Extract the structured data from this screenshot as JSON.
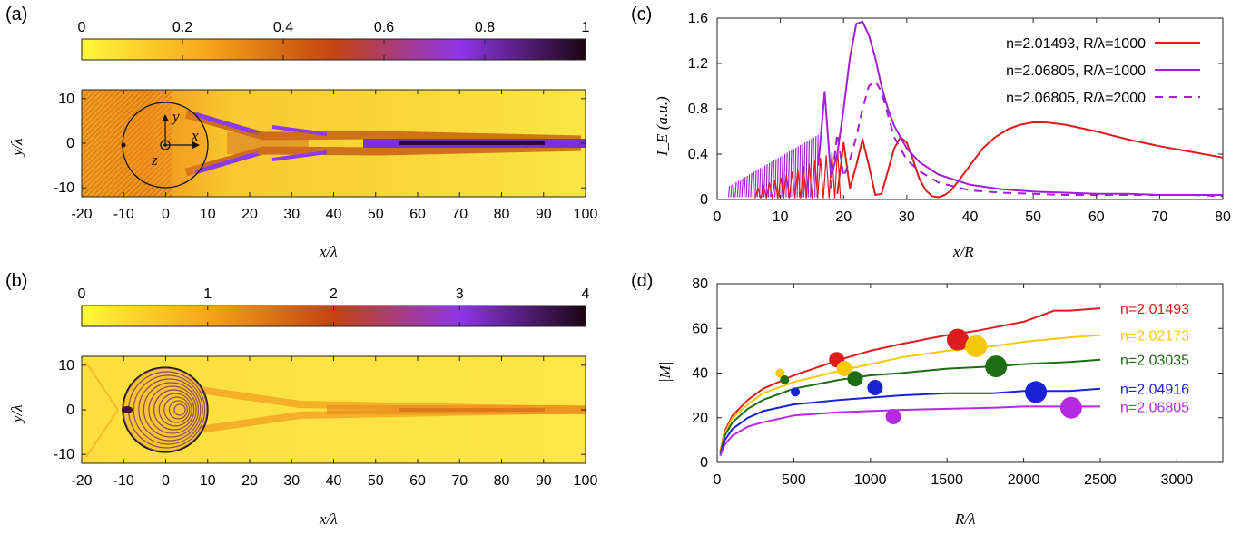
{
  "panel_labels": [
    "(a)",
    "(b)",
    "(c)",
    "(d)"
  ],
  "chart_data": [
    {
      "panel": "(a)",
      "type": "heatmap",
      "colorbar": {
        "ticks": [
          "0",
          "0.2",
          "0.4",
          "0.6",
          "0.8",
          "1"
        ],
        "range": [
          0,
          1
        ],
        "colors": [
          "#fff83a",
          "#f6a51a",
          "#c2430f",
          "#8e35e8",
          "#1a0610"
        ]
      },
      "xlabel": "x/λ",
      "ylabel": "y/λ",
      "xticks": [
        "-20",
        "-10",
        "0",
        "10",
        "20",
        "30",
        "40",
        "50",
        "60",
        "70",
        "80",
        "90",
        "100"
      ],
      "yticks": [
        "10",
        "0",
        "-10"
      ],
      "xlim": [
        -20,
        100
      ],
      "ylim": [
        -12,
        12
      ],
      "annotations": [
        "y",
        "x",
        "z"
      ],
      "sphere": {
        "center": [
          0,
          0
        ],
        "radius": 10
      }
    },
    {
      "panel": "(b)",
      "type": "heatmap",
      "colorbar": {
        "ticks": [
          "0",
          "1",
          "2",
          "3",
          "4"
        ],
        "range": [
          0,
          4
        ],
        "colors": [
          "#fff83a",
          "#f6a51a",
          "#c2430f",
          "#8e35e8",
          "#1a0610"
        ]
      },
      "xlabel": "x/λ",
      "ylabel": "y/λ",
      "xticks": [
        "-20",
        "-10",
        "0",
        "10",
        "20",
        "30",
        "40",
        "50",
        "60",
        "70",
        "80",
        "90",
        "100"
      ],
      "yticks": [
        "10",
        "0",
        "-10"
      ],
      "xlim": [
        -20,
        100
      ],
      "ylim": [
        -12,
        12
      ],
      "sphere": {
        "center": [
          0,
          0
        ],
        "radius": 10
      }
    },
    {
      "panel": "(c)",
      "type": "line",
      "xlabel": "x/R",
      "ylabel": "I_E (a.u.)",
      "xlim": [
        0,
        80
      ],
      "ylim": [
        0,
        1.6
      ],
      "xticks": [
        "0",
        "10",
        "20",
        "30",
        "40",
        "50",
        "60",
        "70",
        "80"
      ],
      "yticks": [
        "0",
        "0.4",
        "0.8",
        "1.2",
        "1.6"
      ],
      "legend": [
        "n=2.01493, R/λ=1000",
        "n=2.06805, R/λ=1000",
        "n=2.06805, R/λ=2000"
      ],
      "series": [
        {
          "name": "n=2.01493, R/λ=1000",
          "color": "#dd1c1c",
          "style": "solid",
          "x": [
            19,
            20,
            21,
            22,
            23,
            24,
            25,
            26,
            27,
            28,
            29,
            30,
            31,
            32,
            33,
            34,
            35,
            36,
            37,
            38,
            40,
            42,
            44,
            46,
            48,
            50,
            52,
            55,
            60,
            65,
            70,
            75,
            80
          ],
          "y": [
            0.05,
            0.5,
            0.1,
            0.3,
            0.53,
            0.3,
            0.04,
            0.05,
            0.25,
            0.45,
            0.55,
            0.5,
            0.35,
            0.18,
            0.08,
            0.03,
            0.02,
            0.04,
            0.08,
            0.15,
            0.3,
            0.45,
            0.55,
            0.62,
            0.66,
            0.68,
            0.68,
            0.66,
            0.6,
            0.53,
            0.47,
            0.42,
            0.37
          ]
        },
        {
          "name": "n=2.06805, R/λ=1000",
          "color": "#a21fd4",
          "style": "solid",
          "x": [
            16,
            17,
            18,
            19,
            20,
            21,
            22,
            23,
            24,
            25,
            26,
            27,
            28,
            30,
            32,
            35,
            40,
            45,
            50,
            55,
            60,
            65,
            70,
            75,
            80
          ],
          "y": [
            0.3,
            0.95,
            0.2,
            0.4,
            0.8,
            1.25,
            1.55,
            1.57,
            1.45,
            1.25,
            1.0,
            0.8,
            0.65,
            0.45,
            0.33,
            0.22,
            0.13,
            0.09,
            0.07,
            0.06,
            0.05,
            0.05,
            0.04,
            0.04,
            0.04
          ]
        },
        {
          "name": "n=2.06805, R/λ=2000",
          "color": "#a21fd4",
          "style": "dashed",
          "x": [
            18,
            19,
            20,
            21,
            22,
            23,
            24,
            25,
            26,
            27,
            28,
            30,
            32,
            35,
            40,
            45,
            50,
            55,
            60,
            65,
            70,
            75,
            80
          ],
          "y": [
            0.1,
            0.58,
            0.2,
            0.35,
            0.55,
            0.8,
            1.0,
            1.05,
            0.95,
            0.75,
            0.55,
            0.35,
            0.25,
            0.15,
            0.08,
            0.06,
            0.05,
            0.04,
            0.04,
            0.04,
            0.04,
            0.04,
            0.03
          ]
        }
      ]
    },
    {
      "panel": "(d)",
      "type": "line",
      "xlabel": "R/λ",
      "ylabel": "|M|",
      "xlim": [
        0,
        3300
      ],
      "ylim": [
        0,
        80
      ],
      "xticks": [
        "0",
        "500",
        "1000",
        "1500",
        "2000",
        "2500",
        "3000"
      ],
      "yticks": [
        "0",
        "20",
        "40",
        "60",
        "80"
      ],
      "series": [
        {
          "name": "n=2.01493",
          "color": "#dd1c1c",
          "x": [
            20,
            50,
            100,
            200,
            300,
            500,
            800,
            1000,
            1200,
            1500,
            1700,
            2000,
            2200,
            2300,
            2500
          ],
          "y": [
            5,
            14,
            21,
            28,
            33,
            39,
            46,
            50,
            53,
            57,
            59,
            63,
            68,
            68,
            69
          ],
          "points": [
            {
              "x": 780,
              "y": 46,
              "size": 2
            },
            {
              "x": 1570,
              "y": 55,
              "size": 3
            }
          ]
        },
        {
          "name": "n=2.02173",
          "color": "#f4c90c",
          "x": [
            20,
            50,
            100,
            200,
            300,
            500,
            800,
            1000,
            1200,
            1500,
            1800,
            2000,
            2300,
            2500
          ],
          "y": [
            5,
            13,
            20,
            26,
            31,
            36,
            41,
            44,
            47,
            50,
            52,
            54,
            56,
            57
          ],
          "points": [
            {
              "x": 410,
              "y": 40,
              "size": 1
            },
            {
              "x": 830,
              "y": 42,
              "size": 2
            },
            {
              "x": 1690,
              "y": 52,
              "size": 3
            }
          ]
        },
        {
          "name": "n=2.03035",
          "color": "#1e6d14",
          "x": [
            20,
            50,
            100,
            200,
            300,
            500,
            800,
            1000,
            1200,
            1500,
            1800,
            2000,
            2300,
            2500
          ],
          "y": [
            4,
            12,
            18,
            24,
            28,
            33,
            37,
            39,
            40,
            42,
            43,
            44,
            45,
            46
          ],
          "points": [
            {
              "x": 440,
              "y": 37,
              "size": 1
            },
            {
              "x": 900,
              "y": 37.5,
              "size": 2
            },
            {
              "x": 1820,
              "y": 43,
              "size": 3
            }
          ]
        },
        {
          "name": "n=2.04916",
          "color": "#1a22d6",
          "x": [
            20,
            50,
            100,
            200,
            300,
            500,
            800,
            1000,
            1200,
            1500,
            1800,
            2000,
            2300,
            2500
          ],
          "y": [
            3,
            10,
            15,
            20,
            23,
            26,
            28,
            29,
            30,
            31,
            31,
            32,
            32,
            33
          ],
          "points": [
            {
              "x": 510,
              "y": 31.5,
              "size": 1
            },
            {
              "x": 1030,
              "y": 33.5,
              "size": 2
            },
            {
              "x": 2080,
              "y": 31.5,
              "size": 3
            }
          ]
        },
        {
          "name": "n=2.06805",
          "color": "#b52ae0",
          "x": [
            20,
            50,
            100,
            200,
            300,
            500,
            800,
            1000,
            1200,
            1500,
            1800,
            2000,
            2300,
            2500
          ],
          "y": [
            3,
            8,
            12,
            16,
            18,
            21,
            22.5,
            23,
            23.5,
            24,
            24.5,
            25,
            25,
            25
          ],
          "points": [
            {
              "x": 1150,
              "y": 20.5,
              "size": 2
            },
            {
              "x": 2310,
              "y": 24.5,
              "size": 3
            }
          ]
        }
      ]
    }
  ]
}
